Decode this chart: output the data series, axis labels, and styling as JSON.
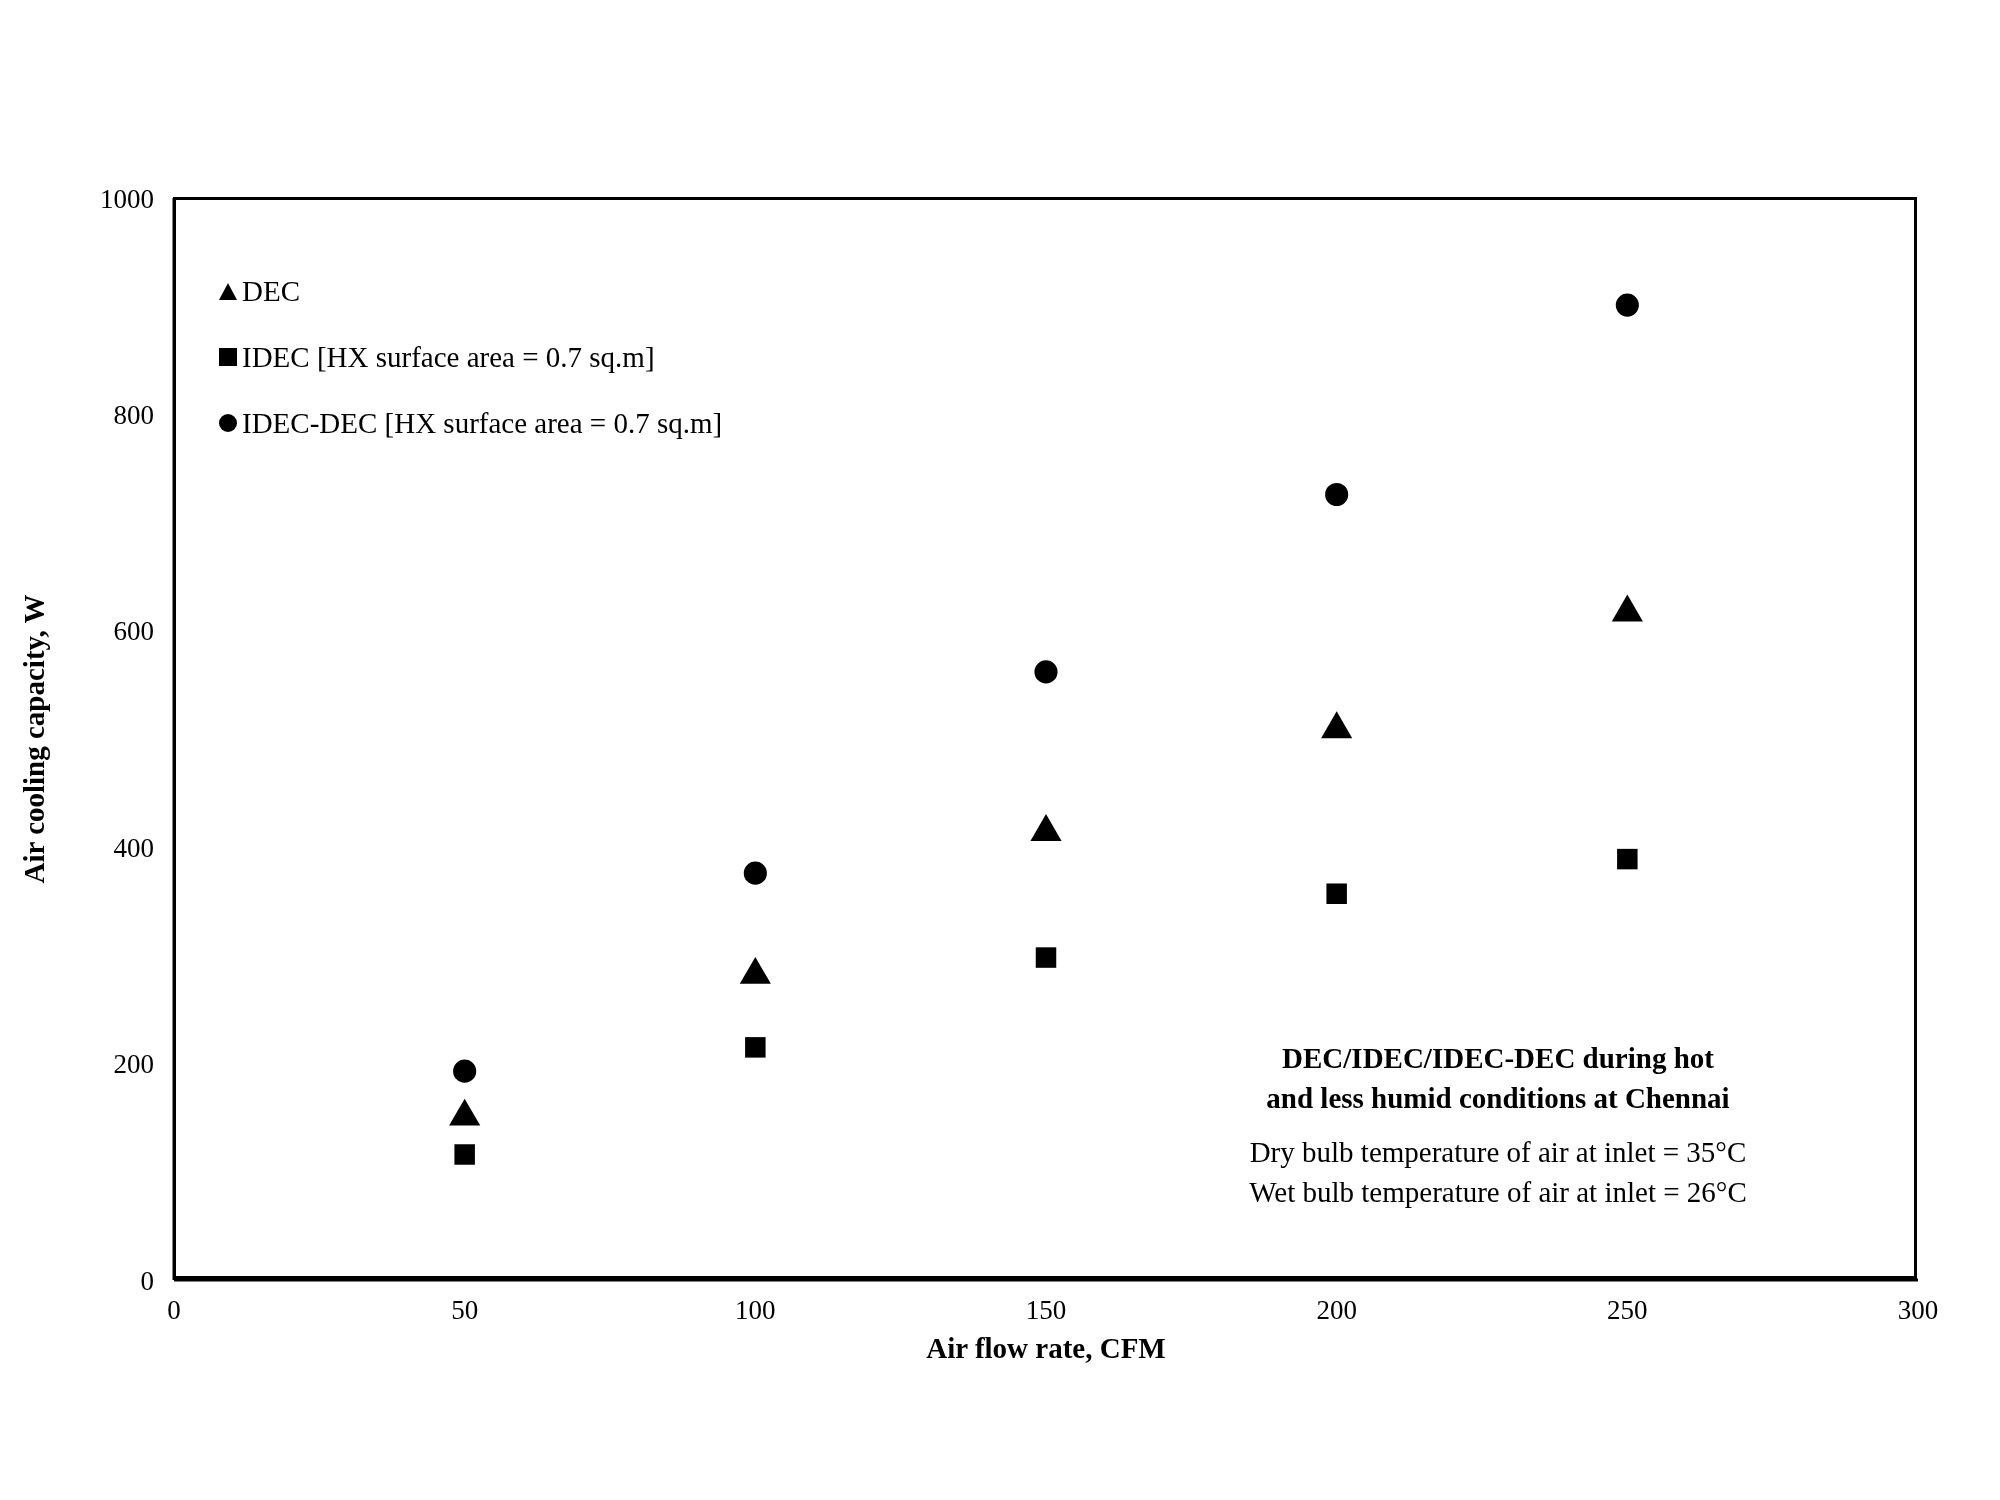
{
  "chart_data": {
    "type": "scatter",
    "xlabel": "Air flow rate, CFM",
    "ylabel": "Air cooling capacity, W",
    "x": [
      50,
      100,
      150,
      200,
      250
    ],
    "series": [
      {
        "name": "DEC",
        "color": "#000000",
        "marker": "triangle",
        "values": [
          151,
          282,
          414,
          509,
          617
        ]
      },
      {
        "name": "IDEC [HX surface area = 0.7 sq.m]",
        "color": "#000000",
        "marker": "square",
        "values": [
          116,
          215,
          298,
          357,
          389
        ]
      },
      {
        "name": "IDEC-DEC [HX surface area = 0.7 sq.m]",
        "color": "#000000",
        "marker": "circle",
        "values": [
          193,
          376,
          562,
          726,
          901
        ]
      }
    ],
    "xlim": [
      0,
      300
    ],
    "xticks": [
      0,
      50,
      100,
      150,
      200,
      250,
      300
    ],
    "ylim": [
      0,
      1000
    ],
    "yticks": [
      0,
      200,
      400,
      600,
      800,
      1000
    ],
    "grid": false,
    "legend": "top left",
    "annotations": [
      "DEC/IDEC/IDEC-DEC  during hot\nand less humid conditions at Chennai",
      "Dry bulb temperature of air at inlet = 35°C",
      "Wet bulb temperature of air at inlet = 26°C"
    ]
  }
}
